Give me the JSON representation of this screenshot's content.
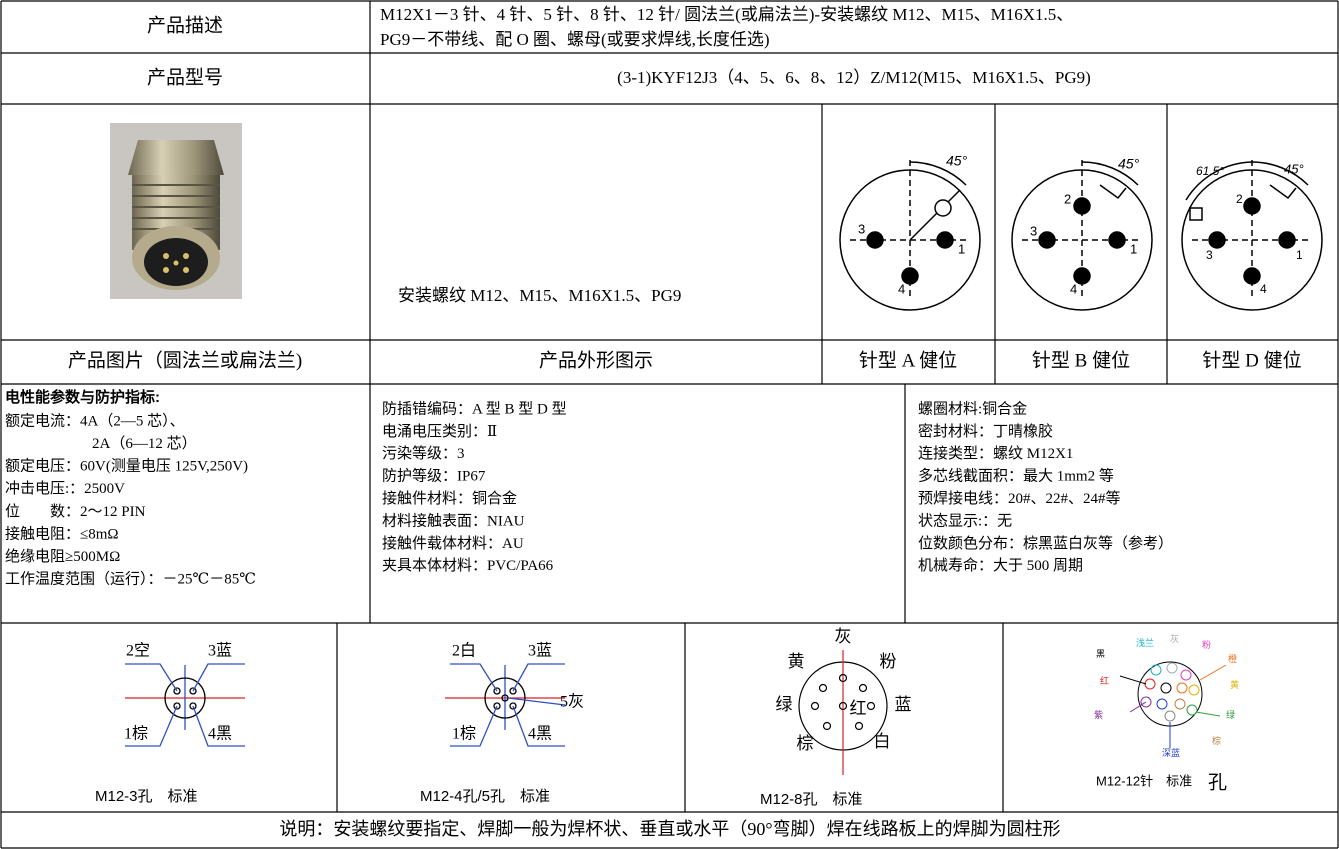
{
  "description": {
    "label": "产品描述",
    "lines": [
      "M12X1－3 针、4 针、5 针、8 针、12 针/ 圆法兰(或扁法兰)-安装螺纹 M12、M15、M16X1.5、",
      "PG9－不带线、配 O 圈、螺母(或要求焊线,长度任选)"
    ]
  },
  "model": {
    "label": "产品型号",
    "value": "(3-1)KYF12J3（4、5、6、8、12）Z/M12(M15、M16X1.5、PG9)"
  },
  "figures": {
    "mount_text": "安装螺纹 M12、M15、M16X1.5、PG9",
    "captions": [
      "产品图片（圆法兰或扁法兰)",
      "产品外形图示",
      "针型 A 健位",
      "针型 B 健位",
      "针型 D 健位"
    ],
    "keying_a": {
      "angle": "45°",
      "pins": [
        "3",
        "1",
        "4"
      ]
    },
    "keying_b": {
      "angle": "45°",
      "pins": [
        "2",
        "3",
        "1",
        "4"
      ]
    },
    "keying_d": {
      "angles": [
        "61.5°",
        "45°"
      ],
      "pins": [
        "2",
        "3",
        "1",
        "4"
      ]
    }
  },
  "specs": {
    "heading": "电性能参数与防护指标:",
    "electrical": [
      "额定电流：4A（2—5 芯）、",
      "2A（6—12 芯）",
      "额定电压：60V(测量电压 125V,250V)",
      "冲击电压:：2500V",
      "位　　数：2～12 PIN",
      "接触电阻：≤8mΩ",
      "绝缘电阻≥500MΩ",
      "工作温度范围（运行）：－25℃－85℃"
    ],
    "protection": [
      "防插错编码：A 型 B 型 D 型",
      "电涌电压类别：Ⅱ",
      "污染等级：3",
      "防护等级：IP67",
      "接触件材料：铜合金",
      "材料接触表面：NIAU",
      "接触件载体材料：AU",
      "夹具本体材料：PVC/PA66"
    ],
    "materials": [
      "螺圈材料:铜合金",
      "密封材料：丁晴橡胶",
      "连接类型：螺纹 M12X1",
      "多芯线截面积：最大 1mm2 等",
      "预焊接电线：20#、22#、24#等",
      "状态显示:：无",
      "位数颜色分布：棕黑蓝白灰等（参考）",
      "机械寿命：大于 500 周期"
    ]
  },
  "wiring": [
    {
      "labels": [
        "2空",
        "3蓝",
        "1棕",
        "4黑"
      ],
      "caption": "M12-3孔　标准"
    },
    {
      "labels": [
        "2白",
        "3蓝",
        "5灰",
        "1棕",
        "4黑"
      ],
      "caption": "M12-4孔/5孔　标准"
    },
    {
      "labels": [
        "灰",
        "黄",
        "粉",
        "绿",
        "红",
        "蓝",
        "棕",
        "白"
      ],
      "caption": "M12-8孔　标准"
    },
    {
      "labels": [
        "黑",
        "浅兰",
        "灰",
        "粉",
        "橙",
        "红",
        "黄",
        "紫",
        "绿",
        "棕",
        "深蓝"
      ],
      "caption": "M12-12针　标准",
      "suffix": "孔"
    }
  ],
  "note": "说明：安装螺纹要指定、焊脚一般为焊杯状、垂直或水平（90°弯脚）焊在线路板上的焊脚为圆柱形"
}
